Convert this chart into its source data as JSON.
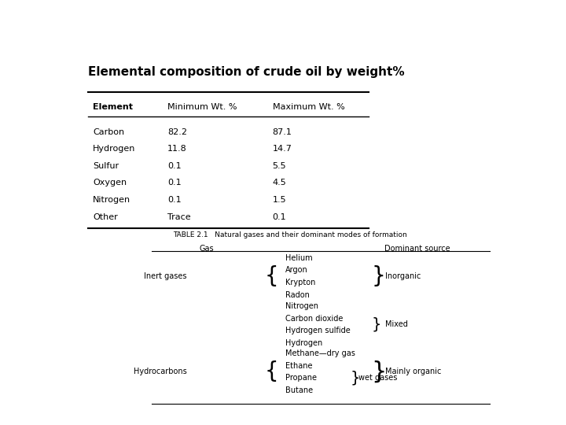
{
  "title": "Elemental composition of crude oil by weight%",
  "table1": {
    "headers": [
      "Element",
      "Minimum Wt. %",
      "Maximum Wt. %"
    ],
    "rows": [
      [
        "Carbon",
        "82.2",
        "87.1"
      ],
      [
        "Hydrogen",
        "11.8",
        "14.7"
      ],
      [
        "Sulfur",
        "0.1",
        "5.5"
      ],
      [
        "Oxygen",
        "0.1",
        "4.5"
      ],
      [
        "Nitrogen",
        "0.1",
        "1.5"
      ],
      [
        "Other",
        "Trace",
        "0.1"
      ]
    ]
  },
  "table2": {
    "title": "TABLE 2.1   Natural gases and their dominant modes of formation",
    "col_headers": [
      "Gas",
      "Dominant source"
    ],
    "inert_gases_label": "Inert gases",
    "hydrocarbons_label": "Hydrocarbons",
    "inert_gases_items": [
      "Helium",
      "Argon",
      "Krypton",
      "Radon"
    ],
    "mixed_items": [
      "Nitrogen",
      "Carbon dioxide",
      "Hydrogen sulfide"
    ],
    "hydro_items": [
      "Methane—dry gas",
      "Ethane",
      "Propane",
      "Butane"
    ],
    "source_inorganic": "Inorganic",
    "source_mixed": "Mixed",
    "source_mainly_organic": "Mainly organic",
    "wet_gases_label": "wet gases"
  },
  "bg_color": "#ffffff",
  "text_color": "#000000",
  "line_color": "#000000"
}
